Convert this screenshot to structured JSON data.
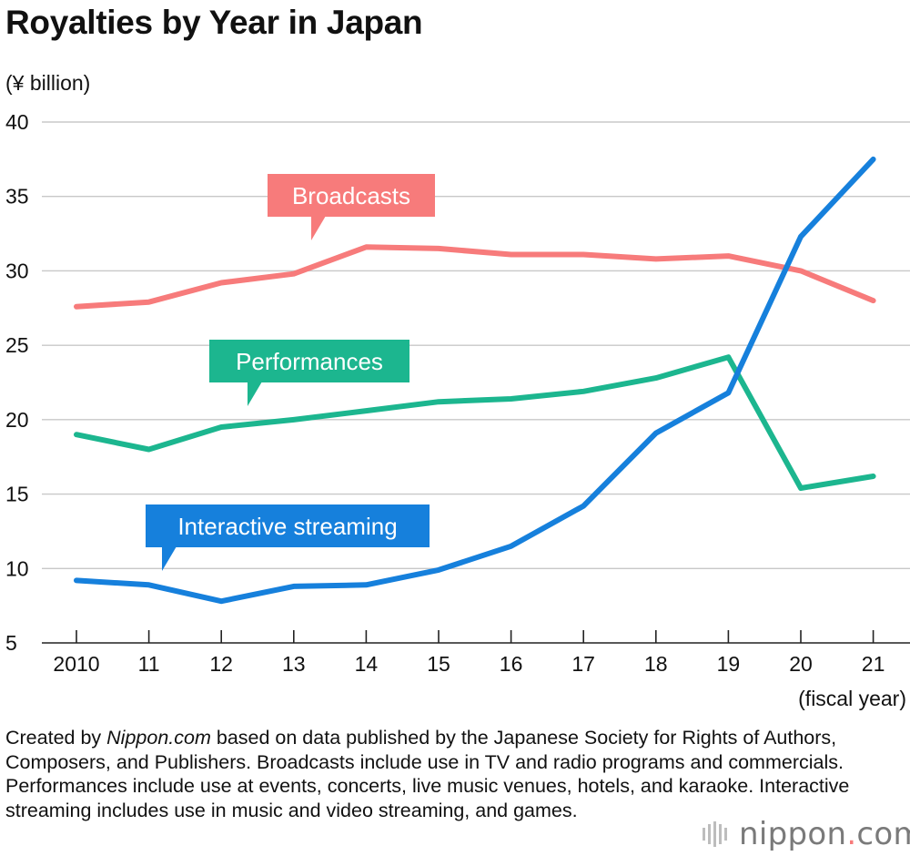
{
  "chart_data": {
    "type": "line",
    "title": "Royalties by Year in Japan",
    "ylabel": "(¥ billion)",
    "xlabel": "(fiscal year)",
    "ylim": [
      5,
      40
    ],
    "yticks": [
      40,
      35,
      30,
      25,
      20,
      15,
      10,
      5
    ],
    "categories": [
      "2010",
      "11",
      "12",
      "13",
      "14",
      "15",
      "16",
      "17",
      "18",
      "19",
      "20",
      "21"
    ],
    "grid": true,
    "series": [
      {
        "name": "Broadcasts",
        "color": "#f77b7b",
        "values": [
          27.6,
          27.9,
          29.2,
          29.8,
          31.6,
          31.5,
          31.1,
          31.1,
          30.8,
          31.0,
          30.0,
          28.0
        ]
      },
      {
        "name": "Performances",
        "color": "#1cb68f",
        "values": [
          19.0,
          18.0,
          19.5,
          20.0,
          20.6,
          21.2,
          21.4,
          21.9,
          22.8,
          24.2,
          15.4,
          16.2
        ]
      },
      {
        "name": "Interactive streaming",
        "color": "#1680dc",
        "values": [
          9.2,
          8.9,
          7.8,
          8.8,
          8.9,
          9.9,
          11.5,
          14.2,
          19.1,
          21.8,
          32.3,
          37.5
        ]
      }
    ]
  },
  "footnote": {
    "part1": "Created by ",
    "source_name": "Nippon.com",
    "part2": " based on data published by the Japanese Society for Rights of Authors, Composers, and Publishers. Broadcasts include use in TV and radio programs and commercials. Performances include use at events, concerts, live music venues, hotels, and karaoke. Interactive streaming includes use in music and video streaming, and games."
  },
  "logo": {
    "text_main": "nippon",
    "text_dot": ".",
    "text_tld": "com",
    "dot_color": "#f77b7b"
  }
}
